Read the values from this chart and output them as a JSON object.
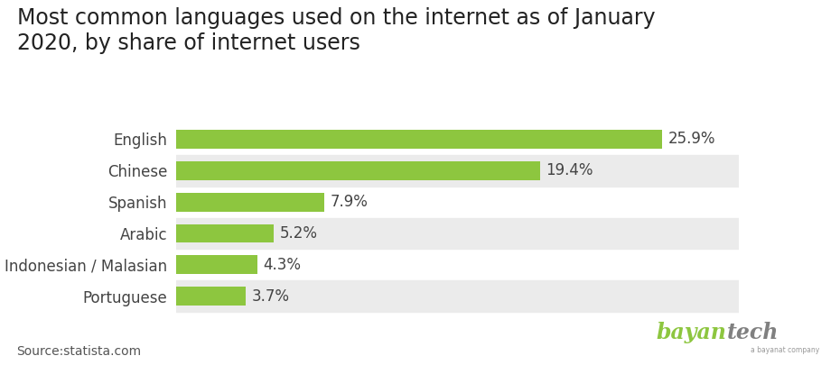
{
  "title": "Most common languages used on the internet as of January\n2020, by share of internet users",
  "categories": [
    "English",
    "Chinese",
    "Spanish",
    "Arabic",
    "Indonesian / Malasian",
    "Portuguese"
  ],
  "values": [
    25.9,
    19.4,
    7.9,
    5.2,
    4.3,
    3.7
  ],
  "labels": [
    "25.9%",
    "19.4%",
    "7.9%",
    "5.2%",
    "4.3%",
    "3.7%"
  ],
  "bar_color": "#8DC63F",
  "alt_row_color": "#EBEBEB",
  "background_color": "#FFFFFF",
  "title_fontsize": 17,
  "label_fontsize": 12,
  "value_fontsize": 12,
  "source_text": "Source:statista.com",
  "brand_bayan": "bayan",
  "brand_tech": "tech",
  "brand_sub": "a bayanat company",
  "brand_bayan_color": "#8DC63F",
  "brand_tech_color": "#808080",
  "source_fontsize": 10,
  "xlim": [
    0,
    30
  ]
}
